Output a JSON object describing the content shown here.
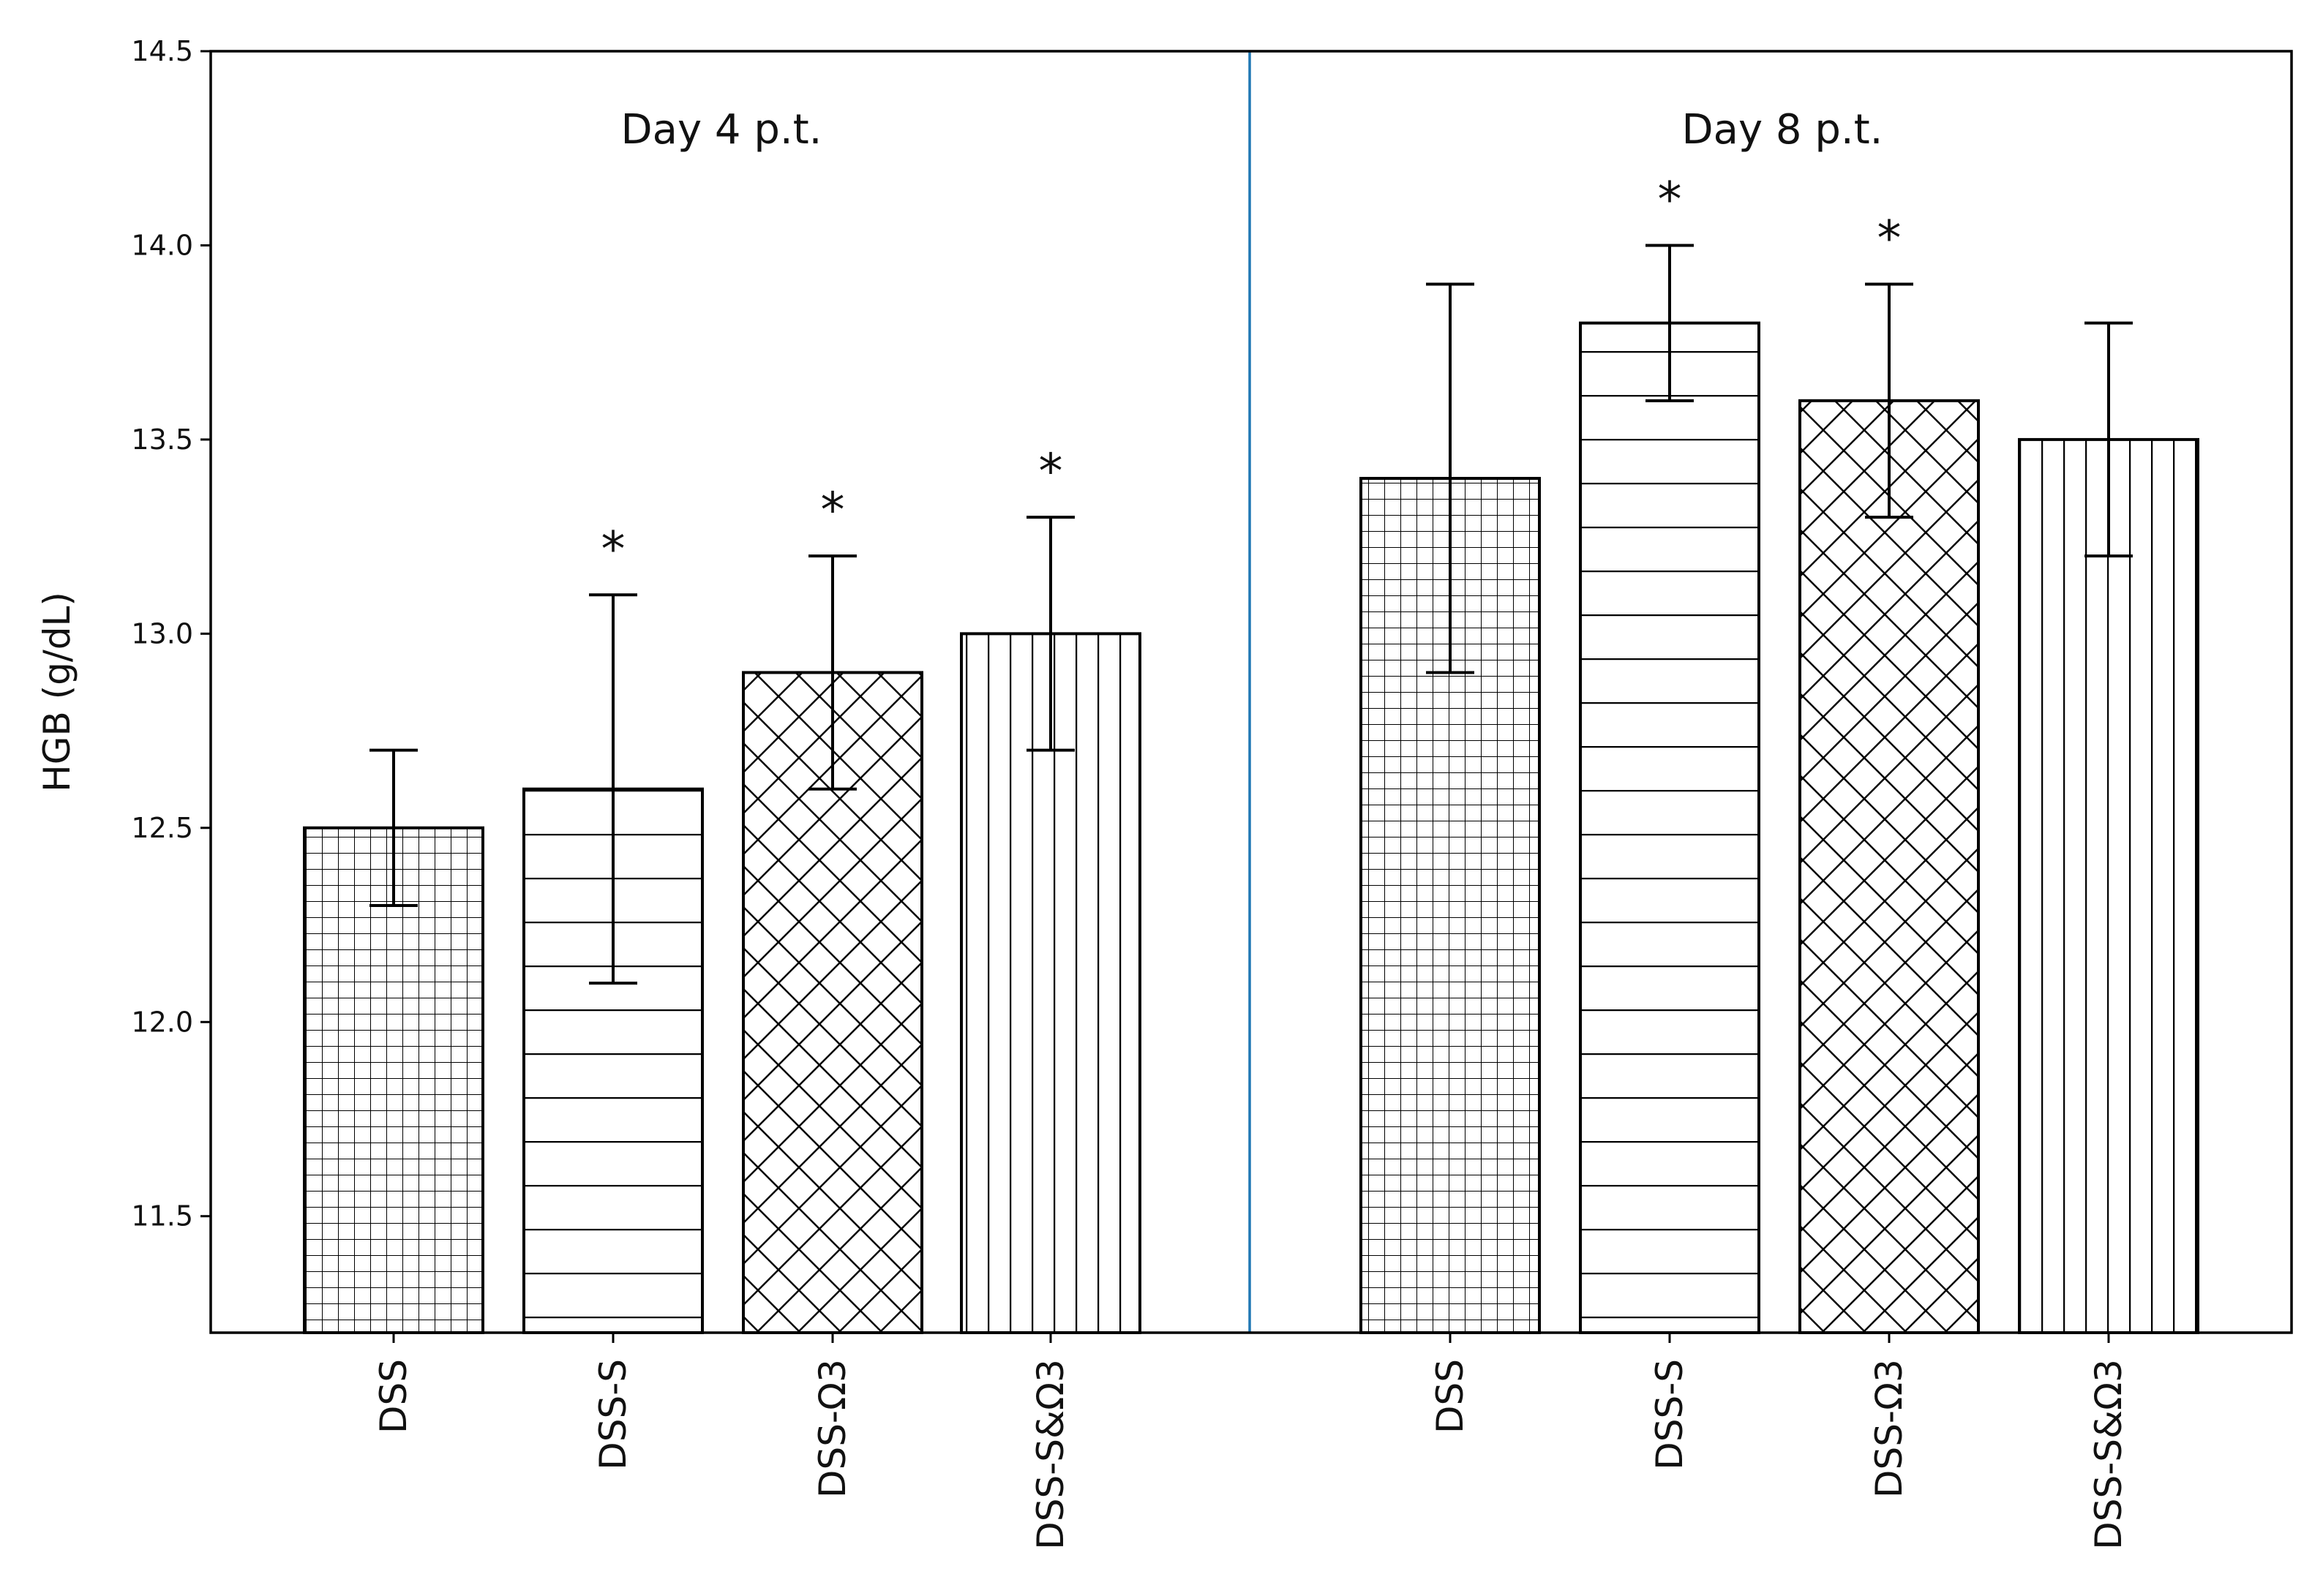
{
  "chart_data": {
    "type": "bar",
    "ylabel": "HGB  (g/dL)",
    "ylim": [
      11.2,
      14.5
    ],
    "yticks": [
      "11.5",
      "12.0",
      "12.5",
      "13.0",
      "13.5",
      "14.0",
      "14.5"
    ],
    "grid": false,
    "legend": "none",
    "groups": [
      {
        "title": "Day 4 p.t.",
        "bars": [
          {
            "category": "DSS",
            "value": 12.5,
            "error": 0.2,
            "pattern": "grid",
            "significant": false
          },
          {
            "category": "DSS-S",
            "value": 12.6,
            "error": 0.5,
            "pattern": "horizontal",
            "significant": true
          },
          {
            "category": "DSS-Ω3",
            "value": 12.9,
            "error": 0.3,
            "pattern": "crosshatch",
            "significant": true
          },
          {
            "category": "DSS-S&Ω3",
            "value": 13.0,
            "error": 0.3,
            "pattern": "vertical",
            "significant": true
          }
        ]
      },
      {
        "title": "Day 8 p.t.",
        "bars": [
          {
            "category": "DSS",
            "value": 13.4,
            "error": 0.5,
            "pattern": "grid",
            "significant": false
          },
          {
            "category": "DSS-S",
            "value": 13.8,
            "error": 0.2,
            "pattern": "horizontal",
            "significant": true
          },
          {
            "category": "DSS-Ω3",
            "value": 13.6,
            "error": 0.3,
            "pattern": "crosshatch",
            "significant": true
          },
          {
            "category": "DSS-S&Ω3",
            "value": 13.5,
            "error": 0.3,
            "pattern": "vertical",
            "significant": false
          }
        ]
      }
    ],
    "significance_marker": "*",
    "colors": {
      "bar_edge": "#000000",
      "bar_fill": "#ffffff",
      "divider": "#1f77b4",
      "axis": "#000000"
    }
  }
}
